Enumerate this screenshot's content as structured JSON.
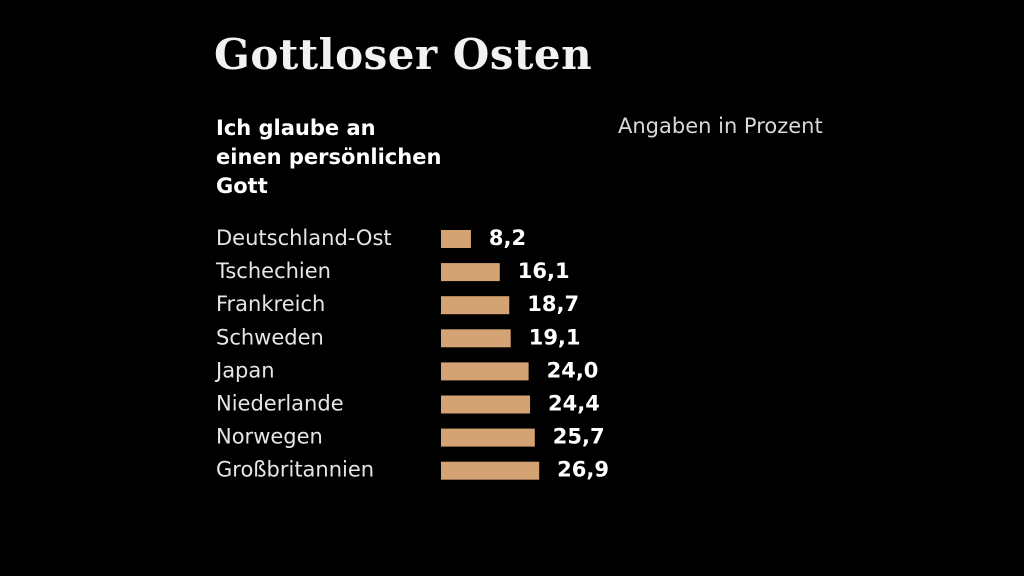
{
  "chart_data": {
    "type": "bar",
    "orientation": "horizontal",
    "title": "Gottloser Osten",
    "subtitle": [
      "Ich glaube an",
      "einen persönlichen",
      "Gott"
    ],
    "unit_note": "Angaben in Prozent",
    "categories": [
      "Deutschland-Ost",
      "Tschechien",
      "Frankreich",
      "Schweden",
      "Japan",
      "Niederlande",
      "Norwegen",
      "Großbritannien"
    ],
    "values": [
      8.2,
      16.1,
      18.7,
      19.1,
      24.0,
      24.4,
      25.7,
      26.9
    ],
    "value_labels": [
      "8,2",
      "16,1",
      "18,7",
      "19,1",
      "24,0",
      "24,4",
      "25,7",
      "26,9"
    ],
    "bar_color": "#d4a373",
    "background_color": "#000000",
    "grid": false,
    "legend": false
  }
}
